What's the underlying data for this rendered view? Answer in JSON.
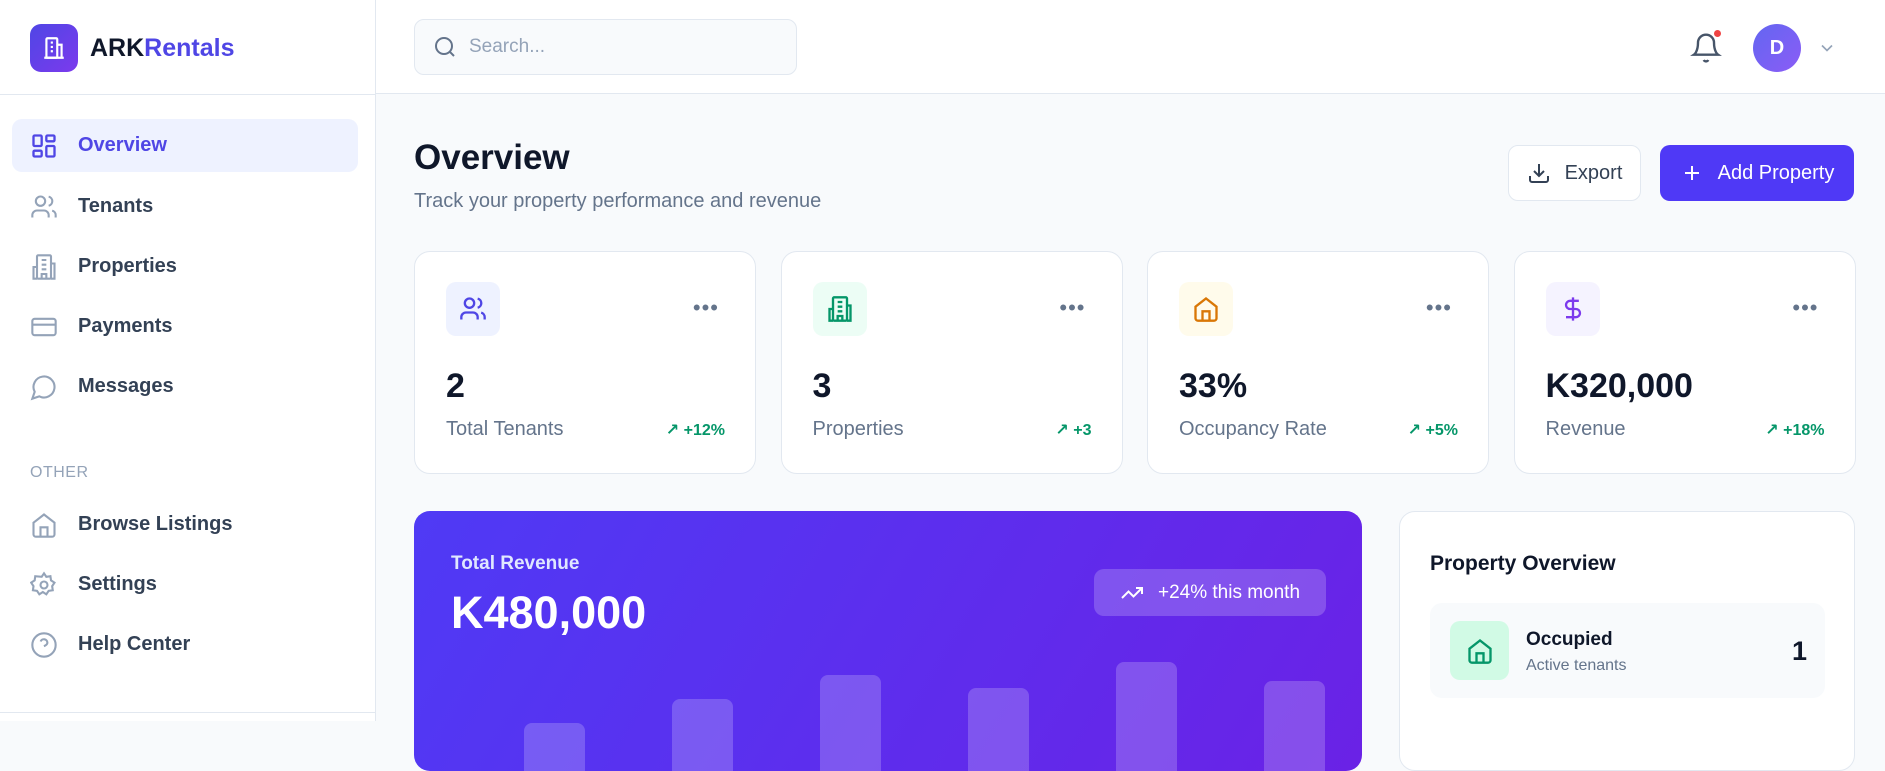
{
  "brand": {
    "name_a": "ARK",
    "name_b": "Rentals"
  },
  "sidebar": {
    "items": [
      {
        "label": "Overview",
        "icon": "grid-icon",
        "active": true
      },
      {
        "label": "Tenants",
        "icon": "users-icon"
      },
      {
        "label": "Properties",
        "icon": "building-icon"
      },
      {
        "label": "Payments",
        "icon": "credit-card-icon"
      },
      {
        "label": "Messages",
        "icon": "message-icon"
      }
    ],
    "section_label": "OTHER",
    "other_items": [
      {
        "label": "Browse Listings",
        "icon": "home-icon"
      },
      {
        "label": "Settings",
        "icon": "gear-icon"
      },
      {
        "label": "Help Center",
        "icon": "help-icon"
      }
    ]
  },
  "header": {
    "search_placeholder": "Search...",
    "avatar_initial": "D",
    "notification_dot_color": "#ef4444"
  },
  "page": {
    "title": "Overview",
    "subtitle": "Track your property performance and revenue",
    "export_label": "Export",
    "add_label": "Add Property"
  },
  "stats": [
    {
      "value": "2",
      "label": "Total Tenants",
      "change": "+12%",
      "icon": "users-icon",
      "color": "#4f46e5",
      "bg": "#eef2ff"
    },
    {
      "value": "3",
      "label": "Properties",
      "change": "+3",
      "icon": "building-icon",
      "color": "#059669",
      "bg": "#ecfdf5"
    },
    {
      "value": "33%",
      "label": "Occupancy Rate",
      "change": "+5%",
      "icon": "home-icon",
      "color": "#d97706",
      "bg": "#fffbeb"
    },
    {
      "value": "K320,000",
      "label": "Revenue",
      "change": "+18%",
      "icon": "dollar-icon",
      "color": "#7c3aed",
      "bg": "#f5f3ff"
    }
  ],
  "revenue": {
    "label": "Total Revenue",
    "amount": "K480,000",
    "badge": "+24% this month",
    "bar_levels": [
      0.3,
      0.45,
      0.6,
      0.52,
      0.68,
      0.56
    ]
  },
  "property_overview": {
    "title": "Property Overview",
    "rows": [
      {
        "name": "Occupied",
        "sub": "Active tenants",
        "count": "1"
      }
    ]
  }
}
